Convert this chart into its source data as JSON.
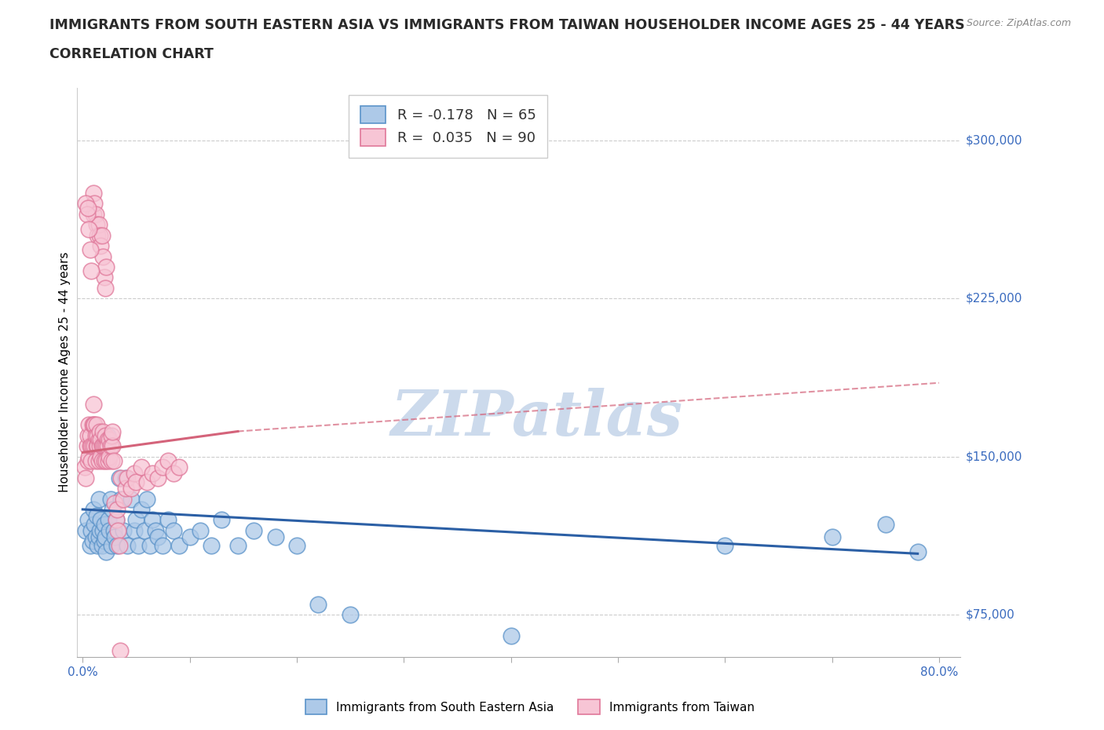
{
  "title_line1": "IMMIGRANTS FROM SOUTH EASTERN ASIA VS IMMIGRANTS FROM TAIWAN HOUSEHOLDER INCOME AGES 25 - 44 YEARS",
  "title_line2": "CORRELATION CHART",
  "source_text": "Source: ZipAtlas.com",
  "ylabel": "Householder Income Ages 25 - 44 years",
  "xlim": [
    -0.005,
    0.82
  ],
  "ylim": [
    55000,
    325000
  ],
  "yticks": [
    75000,
    150000,
    225000,
    300000
  ],
  "ytick_labels": [
    "$75,000",
    "$150,000",
    "$225,000",
    "$300,000"
  ],
  "xticks": [
    0.0,
    0.1,
    0.2,
    0.3,
    0.4,
    0.5,
    0.6,
    0.7,
    0.8
  ],
  "blue_R": -0.178,
  "blue_N": 65,
  "pink_R": 0.035,
  "pink_N": 90,
  "blue_color": "#adc9e8",
  "blue_edge": "#5b93c9",
  "pink_color": "#f7c5d5",
  "pink_edge": "#e0789a",
  "blue_line_color": "#2b5fa5",
  "pink_line_color": "#d4637a",
  "watermark": "ZIPatlas",
  "watermark_color": "#ccdaec",
  "title_fontsize": 12.5,
  "axis_label_fontsize": 11,
  "tick_fontsize": 11,
  "legend_fontsize": 13,
  "ytick_color": "#3a6bbf",
  "xtick_color": "#3a6bbf",
  "blue_scatter_x": [
    0.003,
    0.005,
    0.007,
    0.008,
    0.009,
    0.01,
    0.011,
    0.012,
    0.013,
    0.014,
    0.015,
    0.015,
    0.016,
    0.017,
    0.018,
    0.019,
    0.02,
    0.02,
    0.021,
    0.022,
    0.023,
    0.024,
    0.025,
    0.026,
    0.027,
    0.028,
    0.029,
    0.03,
    0.031,
    0.032,
    0.034,
    0.036,
    0.038,
    0.04,
    0.042,
    0.045,
    0.048,
    0.05,
    0.052,
    0.055,
    0.058,
    0.06,
    0.063,
    0.065,
    0.068,
    0.07,
    0.075,
    0.08,
    0.085,
    0.09,
    0.1,
    0.11,
    0.12,
    0.13,
    0.145,
    0.16,
    0.18,
    0.2,
    0.22,
    0.25,
    0.4,
    0.6,
    0.7,
    0.75,
    0.78
  ],
  "blue_scatter_y": [
    115000,
    120000,
    108000,
    115000,
    110000,
    125000,
    118000,
    112000,
    122000,
    108000,
    130000,
    112000,
    115000,
    120000,
    108000,
    115000,
    118000,
    110000,
    112000,
    105000,
    160000,
    120000,
    115000,
    130000,
    108000,
    125000,
    115000,
    112000,
    120000,
    108000,
    140000,
    130000,
    115000,
    140000,
    108000,
    130000,
    115000,
    120000,
    108000,
    125000,
    115000,
    130000,
    108000,
    120000,
    115000,
    112000,
    108000,
    120000,
    115000,
    108000,
    112000,
    115000,
    108000,
    120000,
    108000,
    115000,
    112000,
    108000,
    80000,
    75000,
    65000,
    108000,
    112000,
    118000,
    105000
  ],
  "pink_scatter_x": [
    0.002,
    0.003,
    0.004,
    0.005,
    0.005,
    0.006,
    0.006,
    0.007,
    0.007,
    0.008,
    0.008,
    0.009,
    0.009,
    0.01,
    0.01,
    0.011,
    0.011,
    0.012,
    0.012,
    0.013,
    0.013,
    0.014,
    0.014,
    0.015,
    0.015,
    0.016,
    0.016,
    0.017,
    0.017,
    0.018,
    0.018,
    0.019,
    0.019,
    0.02,
    0.02,
    0.021,
    0.022,
    0.022,
    0.023,
    0.023,
    0.024,
    0.025,
    0.025,
    0.026,
    0.027,
    0.027,
    0.028,
    0.028,
    0.029,
    0.03,
    0.031,
    0.032,
    0.033,
    0.034,
    0.035,
    0.036,
    0.038,
    0.04,
    0.042,
    0.045,
    0.048,
    0.05,
    0.055,
    0.06,
    0.065,
    0.07,
    0.075,
    0.08,
    0.085,
    0.09,
    0.01,
    0.01,
    0.011,
    0.012,
    0.013,
    0.014,
    0.015,
    0.016,
    0.017,
    0.018,
    0.019,
    0.02,
    0.021,
    0.022,
    0.003,
    0.004,
    0.005,
    0.006,
    0.007,
    0.008
  ],
  "pink_scatter_y": [
    145000,
    140000,
    155000,
    148000,
    160000,
    150000,
    165000,
    155000,
    160000,
    148000,
    155000,
    165000,
    155000,
    165000,
    175000,
    155000,
    165000,
    160000,
    148000,
    155000,
    165000,
    155000,
    160000,
    148000,
    158000,
    155000,
    162000,
    150000,
    158000,
    155000,
    148000,
    155000,
    162000,
    155000,
    148000,
    160000,
    155000,
    148000,
    158000,
    155000,
    148000,
    158000,
    150000,
    155000,
    160000,
    148000,
    155000,
    162000,
    148000,
    128000,
    120000,
    125000,
    115000,
    108000,
    58000,
    140000,
    130000,
    135000,
    140000,
    135000,
    142000,
    138000,
    145000,
    138000,
    142000,
    140000,
    145000,
    148000,
    142000,
    145000,
    265000,
    275000,
    270000,
    265000,
    260000,
    255000,
    260000,
    255000,
    250000,
    255000,
    245000,
    235000,
    230000,
    240000,
    270000,
    265000,
    268000,
    258000,
    248000,
    238000
  ]
}
